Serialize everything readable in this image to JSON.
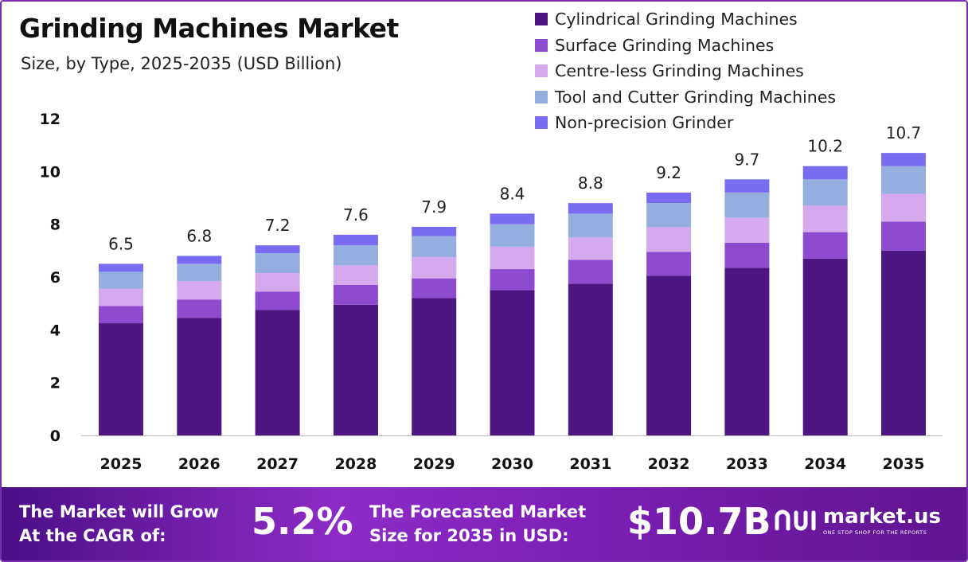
{
  "title": "Grinding Machines Market",
  "subtitle": "Size, by Type, 2025-2035 (USD Billion)",
  "legend": [
    {
      "name": "Cylindrical Grinding Machines",
      "color": "#4e1682"
    },
    {
      "name": "Surface Grinding Machines",
      "color": "#8e4bcf"
    },
    {
      "name": "Centre-less Grinding Machines",
      "color": "#d6a8ee"
    },
    {
      "name": "Tool and Cutter Grinding Machines",
      "color": "#94aee0"
    },
    {
      "name": "Non-precision Grinder",
      "color": "#7a6cf0"
    }
  ],
  "chart_data": {
    "type": "bar",
    "stacked": true,
    "categories": [
      "2025",
      "2026",
      "2027",
      "2028",
      "2029",
      "2030",
      "2031",
      "2032",
      "2033",
      "2034",
      "2035"
    ],
    "series": [
      {
        "name": "Cylindrical Grinding Machines",
        "values": [
          4.25,
          4.45,
          4.75,
          4.95,
          5.2,
          5.5,
          5.75,
          6.05,
          6.35,
          6.7,
          7.0
        ]
      },
      {
        "name": "Surface Grinding Machines",
        "values": [
          0.65,
          0.7,
          0.7,
          0.75,
          0.75,
          0.8,
          0.9,
          0.9,
          0.95,
          1.0,
          1.1
        ]
      },
      {
        "name": "Centre-less Grinding Machines",
        "values": [
          0.65,
          0.7,
          0.7,
          0.75,
          0.8,
          0.85,
          0.85,
          0.95,
          0.95,
          1.0,
          1.05
        ]
      },
      {
        "name": "Tool and Cutter Grinding Machines",
        "values": [
          0.65,
          0.65,
          0.75,
          0.75,
          0.8,
          0.85,
          0.9,
          0.9,
          0.95,
          1.0,
          1.05
        ]
      },
      {
        "name": "Non-precision Grinder",
        "values": [
          0.3,
          0.3,
          0.3,
          0.4,
          0.35,
          0.4,
          0.4,
          0.4,
          0.5,
          0.5,
          0.5
        ]
      }
    ],
    "totals": [
      "6.5",
      "6.8",
      "7.2",
      "7.6",
      "7.9",
      "8.4",
      "8.8",
      "9.2",
      "9.7",
      "10.2",
      "10.7"
    ],
    "yticks": [
      0,
      2,
      4,
      6,
      8,
      10,
      12
    ],
    "ylim": [
      0,
      12
    ],
    "xlabel": "",
    "ylabel": "",
    "grid": false,
    "legend_position": "top-right"
  },
  "footer": {
    "cagr_label_line1": "The Market will Grow",
    "cagr_label_line2": "At the CAGR of:",
    "cagr_value": "5.2%",
    "forecast_label_line1": "The Forecasted Market",
    "forecast_label_line2": "Size for 2035 in USD:",
    "forecast_value": "$10.7B",
    "brand_name": "market.us",
    "brand_tagline": "ONE STOP SHOP FOR THE REPORTS"
  }
}
